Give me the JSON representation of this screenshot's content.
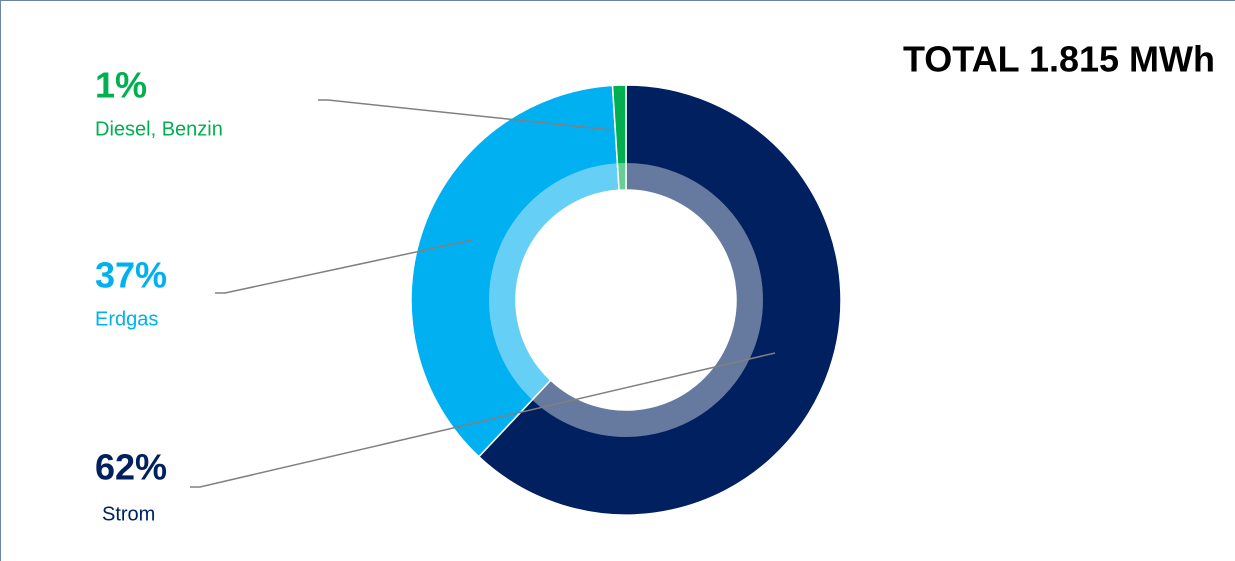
{
  "chart_data": {
    "type": "donut",
    "title": "TOTAL 1.815 MWh",
    "categories": [
      "Strom",
      "Erdgas",
      "Diesel, Benzin"
    ],
    "values": [
      62,
      37,
      1
    ],
    "value_labels": [
      "62%",
      "37%",
      "1%"
    ],
    "colors": [
      "#002060",
      "#00b0f0",
      "#00b050"
    ]
  }
}
